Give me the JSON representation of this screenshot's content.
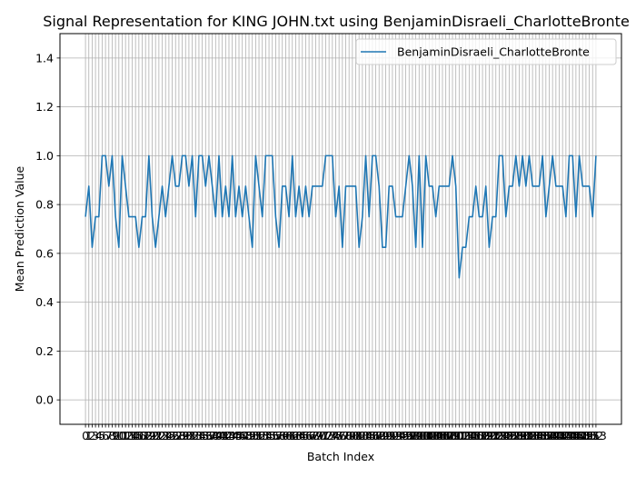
{
  "chart_data": {
    "type": "line",
    "title": "Signal Representation for KING JOHN.txt using BenjaminDisraeli_CharlotteBronte",
    "xlabel": "Batch Index",
    "ylabel": "Mean Prediction Value",
    "xlim": [
      -7.65,
      160.65
    ],
    "ylim": [
      -0.1,
      1.5
    ],
    "yticks": [
      0.0,
      0.2,
      0.4,
      0.6,
      0.8,
      1.0,
      1.2,
      1.4
    ],
    "ytick_labels": [
      "0.0",
      "0.2",
      "0.4",
      "0.6",
      "0.8",
      "1.0",
      "1.2",
      "1.4"
    ],
    "grid": true,
    "legend_position": "top-right",
    "series": [
      {
        "name": "BenjaminDisraeli_CharlotteBronte",
        "color": "#1f77b4",
        "values": [
          0.75,
          0.875,
          0.625,
          0.75,
          0.75,
          1.0,
          1.0,
          0.875,
          1.0,
          0.75,
          0.625,
          1.0,
          0.875,
          0.75,
          0.75,
          0.75,
          0.625,
          0.75,
          0.75,
          1.0,
          0.75,
          0.625,
          0.75,
          0.875,
          0.75,
          0.875,
          1.0,
          0.875,
          0.875,
          1.0,
          1.0,
          0.875,
          1.0,
          0.75,
          1.0,
          1.0,
          0.875,
          1.0,
          0.875,
          0.75,
          1.0,
          0.75,
          0.875,
          0.75,
          1.0,
          0.75,
          0.875,
          0.75,
          0.875,
          0.75,
          0.625,
          1.0,
          0.875,
          0.75,
          1.0,
          1.0,
          1.0,
          0.75,
          0.625,
          0.875,
          0.875,
          0.75,
          1.0,
          0.75,
          0.875,
          0.75,
          0.875,
          0.75,
          0.875,
          0.875,
          0.875,
          0.875,
          1.0,
          1.0,
          1.0,
          0.75,
          0.875,
          0.625,
          0.875,
          0.875,
          0.875,
          0.875,
          0.625,
          0.75,
          1.0,
          0.75,
          1.0,
          1.0,
          0.875,
          0.625,
          0.625,
          0.875,
          0.875,
          0.75,
          0.75,
          0.75,
          0.875,
          1.0,
          0.875,
          0.625,
          1.0,
          0.625,
          1.0,
          0.875,
          0.875,
          0.75,
          0.875,
          0.875,
          0.875,
          0.875,
          1.0,
          0.875,
          0.5,
          0.625,
          0.625,
          0.75,
          0.75,
          0.875,
          0.75,
          0.75,
          0.875,
          0.625,
          0.75,
          0.75,
          1.0,
          1.0,
          0.75,
          0.875,
          0.875,
          1.0,
          0.875,
          1.0,
          0.875,
          1.0,
          0.875,
          0.875,
          0.875,
          1.0,
          0.75,
          0.875,
          1.0,
          0.875,
          0.875,
          0.875,
          0.75,
          1.0,
          1.0,
          0.75,
          1.0,
          0.875,
          0.875,
          0.875,
          0.75,
          1.0
        ]
      }
    ]
  }
}
